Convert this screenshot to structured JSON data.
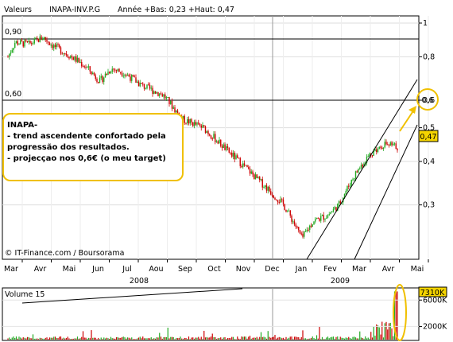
{
  "header": {
    "label": "Valeurs",
    "ticker": "INAPA-INV.P.G",
    "range_text": "Année +Bas: 0,23 +Haut: 0,47"
  },
  "annotation": {
    "title": "INAPA-",
    "lines": [
      "- trend ascendente confortado pela",
      "progressão dos resultados.",
      "- projecçao nos 0,6€ (o meu target)"
    ]
  },
  "credit": "© IT-Finance.com / Boursorama",
  "volume_label": "Volume 15",
  "colors": {
    "up": "#22aa22",
    "down": "#cc0000",
    "annotation": "#f0c000",
    "price_tag": "#f4d400"
  },
  "chart_data": {
    "type": "candlestick",
    "price_axis": {
      "min": 0.2,
      "max": 1.05,
      "scale": "log",
      "ticks": [
        "1",
        "0,8",
        "0,6",
        "0,5",
        "0,4",
        "0,3"
      ],
      "tick_values": [
        1.0,
        0.8,
        0.6,
        0.5,
        0.4,
        0.3
      ]
    },
    "last_price": "0,47",
    "target_label": "0,6",
    "hlines": [
      {
        "label": "0,90",
        "value": 0.9
      },
      {
        "label": "0,60",
        "value": 0.6
      }
    ],
    "months": [
      "Mar",
      "Avr",
      "Mai",
      "Jun",
      "Jul",
      "Aou",
      "Sep",
      "Oct",
      "Nov",
      "Dec",
      "Jan",
      "Fev",
      "Mar",
      "Avr",
      "Mai"
    ],
    "years": [
      "2008",
      "2009"
    ],
    "volume_axis": {
      "ticks": [
        "7310K",
        "6000K",
        "2000K"
      ],
      "tick_values": [
        7310,
        6000,
        2000
      ],
      "max": 7600
    },
    "series_path": [
      [
        0,
        0.8
      ],
      [
        0.5,
        0.88
      ],
      [
        1.5,
        0.87
      ],
      [
        2.5,
        0.91
      ],
      [
        3.2,
        0.86
      ],
      [
        4.5,
        0.8
      ],
      [
        5.5,
        0.75
      ],
      [
        6.5,
        0.68
      ],
      [
        7.3,
        0.74
      ],
      [
        8.2,
        0.72
      ],
      [
        9.5,
        0.66
      ],
      [
        11,
        0.62
      ],
      [
        12.3,
        0.53
      ],
      [
        13.8,
        0.5
      ],
      [
        15.5,
        0.43
      ],
      [
        17.5,
        0.36
      ],
      [
        18.5,
        0.33
      ],
      [
        19.5,
        0.3
      ],
      [
        20.8,
        0.24
      ],
      [
        21.6,
        0.27
      ],
      [
        22.6,
        0.28
      ],
      [
        23.4,
        0.3
      ],
      [
        24.6,
        0.37
      ],
      [
        25.6,
        0.42
      ],
      [
        26.6,
        0.45
      ],
      [
        27.6,
        0.44
      ]
    ]
  }
}
